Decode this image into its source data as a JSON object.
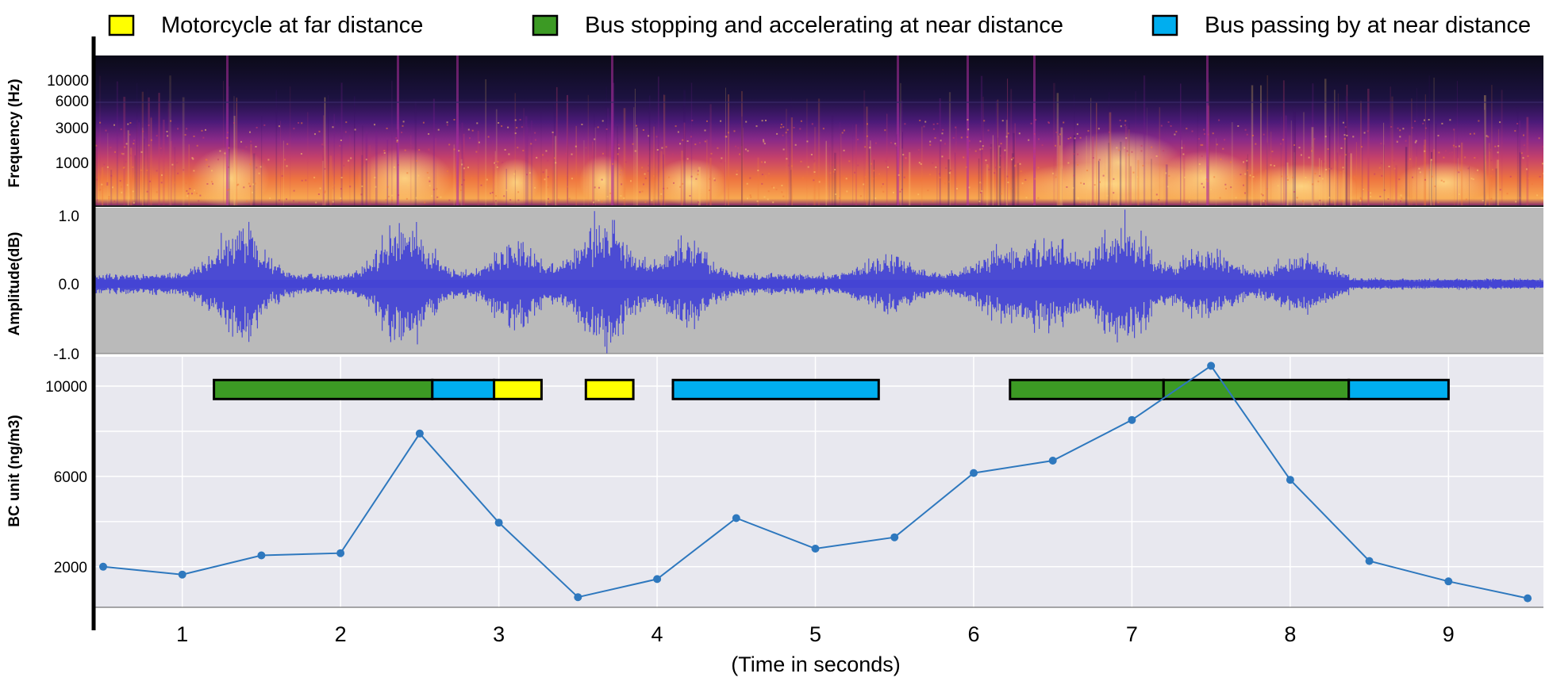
{
  "legend": [
    {
      "label": "Motorcycle at far distance",
      "color": "#FFFF00"
    },
    {
      "label": "Bus stopping and accelerating at near distance",
      "color": "#3C9A24"
    },
    {
      "label": "Bus passing by at near distance",
      "color": "#00AEEF"
    }
  ],
  "spectrogram": {
    "ylabel": "Frequency (Hz)",
    "ticks": [
      "10000",
      "6000",
      "3000",
      "1000"
    ],
    "colormap": [
      "#0c0a1a",
      "#3a1264",
      "#7a1e8a",
      "#c53d6c",
      "#f07a3c",
      "#fbc86a"
    ]
  },
  "waveform": {
    "ylabel": "Amplitude(dB)",
    "ticks": [
      "1.0",
      "0.0",
      "-1.0"
    ],
    "background": "#BABABA",
    "color": "#3F3FD6"
  },
  "chart_data": {
    "type": "line",
    "xlabel": "(Time in seconds)",
    "ylabel": "BC unit (ng/m3)",
    "x_ticks": [
      "1",
      "2",
      "3",
      "4",
      "5",
      "6",
      "7",
      "8",
      "9"
    ],
    "y_ticks": [
      "10000",
      "6000",
      "2000"
    ],
    "xlim": [
      0.44,
      9.6
    ],
    "ylim": [
      200,
      11300
    ],
    "grid": true,
    "legend_position": "top",
    "series": [
      {
        "color": "#2E78BE",
        "x": [
          0.5,
          1.0,
          1.5,
          2.0,
          2.5,
          3.0,
          3.5,
          4.0,
          4.5,
          5.0,
          5.5,
          6.0,
          6.5,
          7.0,
          7.5,
          8.0,
          8.5,
          9.0,
          9.5
        ],
        "values": [
          2000,
          1650,
          2500,
          2600,
          7900,
          3950,
          650,
          1450,
          4150,
          2800,
          3300,
          6150,
          6700,
          8500,
          10900,
          5850,
          2250,
          1350,
          600
        ]
      }
    ],
    "events": [
      {
        "start": 1.2,
        "end": 2.58,
        "type": "Bus stopping and accelerating at near distance"
      },
      {
        "start": 2.58,
        "end": 2.97,
        "type": "Bus passing by at near distance"
      },
      {
        "start": 2.97,
        "end": 3.27,
        "type": "Motorcycle at far distance"
      },
      {
        "start": 3.55,
        "end": 3.85,
        "type": "Motorcycle at far distance"
      },
      {
        "start": 4.1,
        "end": 5.4,
        "type": "Bus passing by at near distance"
      },
      {
        "start": 6.23,
        "end": 7.2,
        "type": "Bus stopping and accelerating at near distance"
      },
      {
        "start": 7.2,
        "end": 8.37,
        "type": "Bus stopping and accelerating at near distance"
      },
      {
        "start": 8.37,
        "end": 9.0,
        "type": "Bus passing by at near distance"
      }
    ]
  }
}
